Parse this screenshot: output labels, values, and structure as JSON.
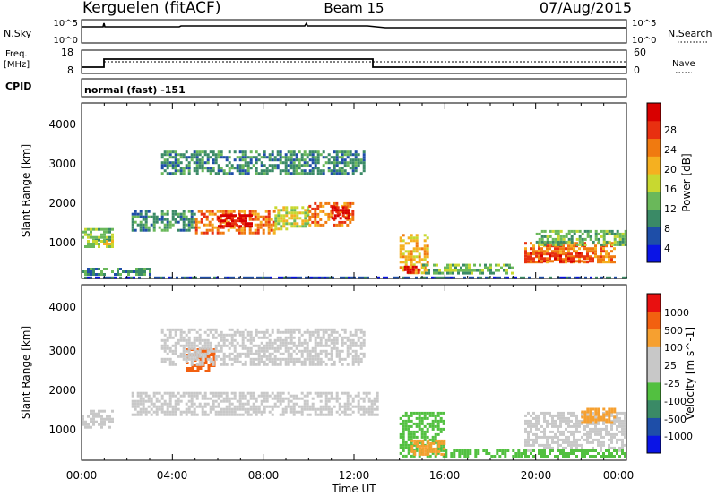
{
  "header": {
    "station": "Kerguelen (fitACF)",
    "beam": "Beam 15",
    "date": "07/Aug/2015"
  },
  "strips": {
    "nsky_label": "N.Sky",
    "nsky_ticks": [
      "10^5",
      "10^0"
    ],
    "nsearch_label": "N.Search",
    "nsearch_ticks": [
      "10^5",
      "10^0"
    ],
    "freq_label": "Freq.",
    "freq_unit": "[MHz]",
    "freq_ticks": [
      "18",
      "8"
    ],
    "nave_label": "Nave",
    "nave_ticks": [
      "60",
      "0"
    ],
    "cpid_label": "CPID",
    "cpid_text": "normal (fast) -151"
  },
  "time_axis": {
    "ticks": [
      "00:00",
      "04:00",
      "08:00",
      "12:00",
      "16:00",
      "20:00",
      "00:00"
    ],
    "label": "Time UT"
  },
  "colors": {
    "power": [
      "#0a14e6",
      "#1e4ea8",
      "#3a8a66",
      "#6ab85a",
      "#c8d830",
      "#f5b020",
      "#f07a10",
      "#e83010",
      "#d80000"
    ],
    "velocity": [
      "#e81010",
      "#f26010",
      "#f6a030",
      "#c8c8c8",
      "#c8c8c8",
      "#52c040",
      "#3a8a66",
      "#1e4ea8",
      "#0a14e6"
    ],
    "gray": "#c8c8c8"
  },
  "chart_data": [
    {
      "type": "heatmap",
      "ylabel": "Slant Range [km]",
      "yticks": [
        "1000",
        "2000",
        "3000",
        "4000"
      ],
      "colorbar": {
        "label": "Power [dB]",
        "ticks": [
          "4",
          "8",
          "12",
          "16",
          "20",
          "24",
          "28"
        ],
        "range": [
          0,
          30
        ]
      },
      "xlim_hours": [
        0,
        24
      ],
      "ylim_km": [
        180,
        4600
      ],
      "regions": [
        {
          "t": [
            0,
            1.4
          ],
          "r": [
            1150,
            1450
          ],
          "level": 3
        },
        {
          "t": [
            0,
            1.4
          ],
          "r": [
            950,
            1150
          ],
          "level": 4
        },
        {
          "t": [
            0,
            3
          ],
          "r": [
            250,
            450
          ],
          "level": 2
        },
        {
          "t": [
            2.2,
            5
          ],
          "r": [
            1400,
            1900
          ],
          "level": 2
        },
        {
          "t": [
            5,
            8.5
          ],
          "r": [
            1350,
            1900
          ],
          "level": 6
        },
        {
          "t": [
            6,
            7.5
          ],
          "r": [
            1500,
            1800
          ],
          "level": 8
        },
        {
          "t": [
            8.5,
            10
          ],
          "r": [
            1400,
            2000
          ],
          "level": 4
        },
        {
          "t": [
            10,
            12
          ],
          "r": [
            1500,
            2100
          ],
          "level": 6
        },
        {
          "t": [
            11,
            11.8
          ],
          "r": [
            1700,
            2000
          ],
          "level": 8
        },
        {
          "t": [
            3.5,
            12.5
          ],
          "r": [
            2800,
            3400
          ],
          "level": 2
        },
        {
          "t": [
            14,
            15.2
          ],
          "r": [
            300,
            1300
          ],
          "level": 5
        },
        {
          "t": [
            14.2,
            14.8
          ],
          "r": [
            300,
            500
          ],
          "level": 8
        },
        {
          "t": [
            15,
            19
          ],
          "r": [
            300,
            550
          ],
          "level": 3
        },
        {
          "t": [
            19.5,
            23.5
          ],
          "r": [
            600,
            1100
          ],
          "level": 6
        },
        {
          "t": [
            19.5,
            22.5
          ],
          "r": [
            600,
            850
          ],
          "level": 7
        },
        {
          "t": [
            20,
            24
          ],
          "r": [
            1000,
            1400
          ],
          "level": 3
        },
        {
          "t": [
            0,
            24
          ],
          "r": [
            180,
            230
          ],
          "level": 1
        }
      ]
    },
    {
      "type": "heatmap",
      "ylabel": "Slant Range [km]",
      "yticks": [
        "1000",
        "2000",
        "3000",
        "4000"
      ],
      "colorbar": {
        "label": "Velocity [m s^-1]",
        "ticks": [
          "1000",
          "500",
          "100",
          "25",
          "-25",
          "-100",
          "-500",
          "-1000"
        ],
        "range": [
          -1200,
          1200
        ]
      },
      "xlim_hours": [
        0,
        24
      ],
      "ylim_km": [
        180,
        4600
      ],
      "regions": [
        {
          "t": [
            0,
            1.4
          ],
          "r": [
            1000,
            1450
          ],
          "level": 4
        },
        {
          "t": [
            2.2,
            13
          ],
          "r": [
            1300,
            1900
          ],
          "level": 4
        },
        {
          "t": [
            4.6,
            5.8
          ],
          "r": [
            2400,
            3000
          ],
          "level": 1
        },
        {
          "t": [
            3.5,
            12.5
          ],
          "r": [
            2600,
            3500
          ],
          "level": 4
        },
        {
          "t": [
            14,
            16
          ],
          "r": [
            300,
            1400
          ],
          "level": 5
        },
        {
          "t": [
            14.5,
            16
          ],
          "r": [
            300,
            700
          ],
          "level": 2
        },
        {
          "t": [
            16,
            19.5
          ],
          "r": [
            250,
            450
          ],
          "level": 5
        },
        {
          "t": [
            19.5,
            24
          ],
          "r": [
            450,
            1400
          ],
          "level": 4
        },
        {
          "t": [
            19.5,
            24
          ],
          "r": [
            250,
            450
          ],
          "level": 5
        },
        {
          "t": [
            22,
            23.5
          ],
          "r": [
            1100,
            1500
          ],
          "level": 2
        }
      ]
    }
  ]
}
